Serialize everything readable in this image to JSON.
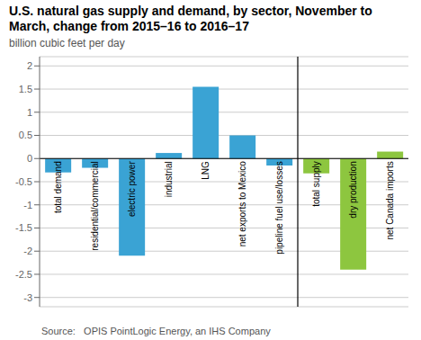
{
  "chart_data": {
    "type": "bar",
    "title": "U.S. natural gas supply and demand, by sector, November to March, change from 2015–16 to 2016–17",
    "subtitle": "billion cubic feet per day",
    "annotations": [
      "Source:   OPIS PointLogic Energy, an IHS Company"
    ],
    "categories": [
      "total demand",
      "residential/commercial",
      "electric power",
      "industrial",
      "LNG",
      "net exports to Mexico",
      "pipeline fuel use/losses",
      "total supply",
      "dry production",
      "net Canada imports"
    ],
    "values": [
      -0.3,
      -0.2,
      -2.1,
      0.12,
      1.55,
      0.5,
      -0.15,
      -0.32,
      -2.4,
      0.15
    ],
    "colors": [
      "#3aa3d4",
      "#3aa3d4",
      "#3aa3d4",
      "#3aa3d4",
      "#3aa3d4",
      "#3aa3d4",
      "#3aa3d4",
      "#8dc63f",
      "#8dc63f",
      "#8dc63f"
    ],
    "ylim": [
      -3.2,
      2.2
    ],
    "yticks": [
      -3,
      -2.5,
      -2,
      -1.5,
      -1,
      -0.5,
      0,
      0.5,
      1,
      1.5,
      2
    ],
    "grid": true
  }
}
